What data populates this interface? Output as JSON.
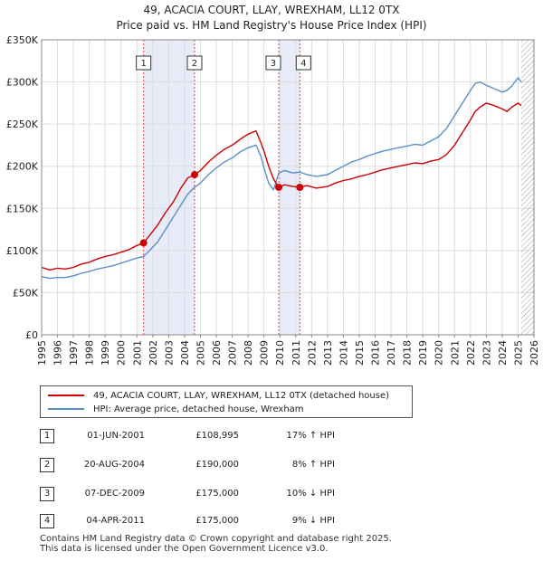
{
  "chart_data": {
    "type": "line",
    "title": "49, ACACIA COURT, LLAY, WREXHAM, LL12 0TX",
    "subtitle": "Price paid vs. HM Land Registry's House Price Index (HPI)",
    "xlabel": "",
    "ylabel": "",
    "xlim": [
      1995,
      2026
    ],
    "ylim": [
      0,
      350000
    ],
    "x_ticks": [
      "1995",
      "1996",
      "1997",
      "1998",
      "1999",
      "2000",
      "2001",
      "2002",
      "2003",
      "2004",
      "2005",
      "2006",
      "2007",
      "2008",
      "2009",
      "2010",
      "2011",
      "2012",
      "2013",
      "2014",
      "2015",
      "2016",
      "2017",
      "2018",
      "2019",
      "2020",
      "2021",
      "2022",
      "2023",
      "2024",
      "2025",
      "2026"
    ],
    "y_ticks": [
      {
        "value": 0,
        "label": "£0"
      },
      {
        "value": 50000,
        "label": "£50K"
      },
      {
        "value": 100000,
        "label": "£100K"
      },
      {
        "value": 150000,
        "label": "£150K"
      },
      {
        "value": 200000,
        "label": "£200K"
      },
      {
        "value": 250000,
        "label": "£250K"
      },
      {
        "value": 300000,
        "label": "£300K"
      },
      {
        "value": 350000,
        "label": "£350K"
      }
    ],
    "grid": true,
    "shaded_periods": [
      [
        2001.42,
        2004.63
      ],
      [
        2009.93,
        2011.26
      ]
    ],
    "future_hatch_from": 2025.2,
    "series": [
      {
        "name": "49, ACACIA COURT, LLAY, WREXHAM, LL12 0TX (detached house)",
        "color": "#cc0000",
        "x": [
          1995.0,
          1995.5,
          1996.0,
          1996.5,
          1997.0,
          1997.5,
          1998.0,
          1998.5,
          1999.0,
          1999.5,
          2000.0,
          2000.5,
          2001.0,
          2001.42,
          2001.8,
          2002.3,
          2002.8,
          2003.3,
          2003.8,
          2004.2,
          2004.63,
          2005.0,
          2005.5,
          2006.0,
          2006.5,
          2007.0,
          2007.5,
          2008.0,
          2008.5,
          2008.8,
          2009.0,
          2009.3,
          2009.6,
          2009.93,
          2010.3,
          2010.8,
          2011.26,
          2011.7,
          2012.3,
          2013.0,
          2013.5,
          2014.0,
          2014.5,
          2015.0,
          2015.5,
          2016.0,
          2016.5,
          2017.0,
          2017.5,
          2018.0,
          2018.5,
          2019.0,
          2019.5,
          2020.0,
          2020.5,
          2021.0,
          2021.5,
          2022.0,
          2022.3,
          2022.6,
          2023.0,
          2023.5,
          2024.0,
          2024.3,
          2024.6,
          2025.0,
          2025.2
        ],
        "values": [
          80000,
          77000,
          79000,
          78000,
          80000,
          84000,
          86000,
          90000,
          93000,
          95000,
          98000,
          101000,
          106000,
          108995,
          118000,
          130000,
          145000,
          158000,
          175000,
          186000,
          190000,
          195000,
          205000,
          213000,
          220000,
          225000,
          232000,
          238000,
          242000,
          228000,
          218000,
          200000,
          185000,
          175000,
          178000,
          176000,
          175000,
          177000,
          174000,
          176000,
          180000,
          183000,
          185000,
          188000,
          190000,
          193000,
          196000,
          198000,
          200000,
          202000,
          204000,
          203000,
          206000,
          208000,
          214000,
          225000,
          240000,
          255000,
          265000,
          270000,
          275000,
          272000,
          268000,
          265000,
          270000,
          275000,
          272000
        ]
      },
      {
        "name": "HPI: Average price, detached house, Wrexham",
        "color": "#5b8fc9",
        "x": [
          1995.0,
          1995.5,
          1996.0,
          1996.5,
          1997.0,
          1997.5,
          1998.0,
          1998.5,
          1999.0,
          1999.5,
          2000.0,
          2000.5,
          2001.0,
          2001.42,
          2001.8,
          2002.3,
          2002.8,
          2003.3,
          2003.8,
          2004.2,
          2004.63,
          2005.0,
          2005.5,
          2006.0,
          2006.5,
          2007.0,
          2007.5,
          2008.0,
          2008.5,
          2008.8,
          2009.0,
          2009.3,
          2009.6,
          2009.93,
          2010.3,
          2010.8,
          2011.26,
          2011.7,
          2012.3,
          2013.0,
          2013.5,
          2014.0,
          2014.5,
          2015.0,
          2015.5,
          2016.0,
          2016.5,
          2017.0,
          2017.5,
          2018.0,
          2018.5,
          2019.0,
          2019.5,
          2020.0,
          2020.5,
          2021.0,
          2021.5,
          2022.0,
          2022.3,
          2022.6,
          2023.0,
          2023.5,
          2024.0,
          2024.3,
          2024.6,
          2025.0,
          2025.2
        ],
        "values": [
          69000,
          67000,
          68000,
          68000,
          70000,
          73000,
          75000,
          78000,
          80000,
          82000,
          85000,
          88000,
          91000,
          93000,
          100000,
          110000,
          125000,
          140000,
          155000,
          167000,
          175000,
          180000,
          190000,
          198000,
          205000,
          210000,
          217000,
          222000,
          225000,
          212000,
          198000,
          180000,
          172000,
          192000,
          195000,
          192000,
          193000,
          190000,
          188000,
          190000,
          195000,
          200000,
          205000,
          208000,
          212000,
          215000,
          218000,
          220000,
          222000,
          224000,
          226000,
          225000,
          230000,
          235000,
          245000,
          260000,
          275000,
          290000,
          298000,
          300000,
          296000,
          292000,
          288000,
          290000,
          295000,
          305000,
          300000
        ]
      }
    ],
    "markers": [
      {
        "label": "1",
        "x": 2001.42,
        "value": 108995
      },
      {
        "label": "2",
        "x": 2004.63,
        "value": 190000
      },
      {
        "label": "3",
        "x": 2009.93,
        "value": 175000
      },
      {
        "label": "4",
        "x": 2011.26,
        "value": 175000
      }
    ]
  },
  "legend": {
    "property_label": "49, ACACIA COURT, LLAY, WREXHAM, LL12 0TX (detached house)",
    "hpi_label": "HPI: Average price, detached house, Wrexham"
  },
  "sales": [
    {
      "num": "1",
      "date": "01-JUN-2001",
      "price": "£108,995",
      "hpi": "17% ↑ HPI"
    },
    {
      "num": "2",
      "date": "20-AUG-2004",
      "price": "£190,000",
      "hpi": "8% ↑ HPI"
    },
    {
      "num": "3",
      "date": "07-DEC-2009",
      "price": "£175,000",
      "hpi": "10% ↓ HPI"
    },
    {
      "num": "4",
      "date": "04-APR-2011",
      "price": "£175,000",
      "hpi": "9% ↓ HPI"
    }
  ],
  "footer": {
    "line1": "Contains HM Land Registry data © Crown copyright and database right 2025.",
    "line2": "This data is licensed under the Open Government Licence v3.0."
  }
}
